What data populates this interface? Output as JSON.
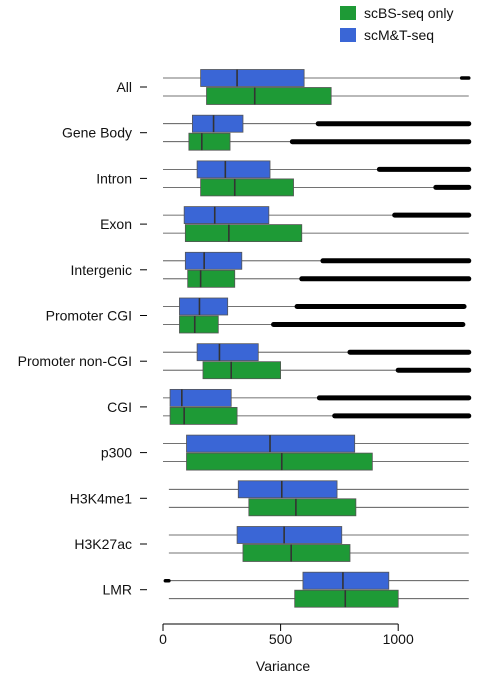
{
  "chart_data": {
    "type": "boxplot",
    "orientation": "horizontal",
    "xlabel": "Variance",
    "xlim": [
      -20,
      1320
    ],
    "xticks": [
      0,
      500,
      1000
    ],
    "grid": false,
    "legend_position": "top-right",
    "categories": [
      "All",
      "Gene Body",
      "Intron",
      "Exon",
      "Intergenic",
      "Promoter CGI",
      "Promoter non-CGI",
      "CGI",
      "p300",
      "H3K4me1",
      "H3K27ac",
      "LMR"
    ],
    "series": [
      {
        "name": "scM&T-seq",
        "color": "#3a66d6",
        "boxes": [
          {
            "min": 0,
            "q1": 160,
            "median": 315,
            "q3": 600,
            "max": 1270,
            "outliers_from": 1270,
            "outliers_to": 1300
          },
          {
            "min": 0,
            "q1": 125,
            "median": 215,
            "q3": 340,
            "max": 660,
            "outliers_from": 660,
            "outliers_to": 1300
          },
          {
            "min": 0,
            "q1": 145,
            "median": 265,
            "q3": 455,
            "max": 920,
            "outliers_from": 920,
            "outliers_to": 1300
          },
          {
            "min": 0,
            "q1": 90,
            "median": 220,
            "q3": 450,
            "max": 985,
            "outliers_from": 985,
            "outliers_to": 1300
          },
          {
            "min": 0,
            "q1": 95,
            "median": 175,
            "q3": 335,
            "max": 680,
            "outliers_from": 680,
            "outliers_to": 1300
          },
          {
            "min": 0,
            "q1": 70,
            "median": 155,
            "q3": 275,
            "max": 570,
            "outliers_from": 570,
            "outliers_to": 1280
          },
          {
            "min": 0,
            "q1": 145,
            "median": 240,
            "q3": 405,
            "max": 795,
            "outliers_from": 795,
            "outliers_to": 1300
          },
          {
            "min": 0,
            "q1": 30,
            "median": 80,
            "q3": 290,
            "max": 665,
            "outliers_from": 665,
            "outliers_to": 1300
          },
          {
            "min": 0,
            "q1": 100,
            "median": 455,
            "q3": 815,
            "max": 1300
          },
          {
            "min": 25,
            "q1": 320,
            "median": 505,
            "q3": 740,
            "max": 1300
          },
          {
            "min": 25,
            "q1": 315,
            "median": 515,
            "q3": 760,
            "max": 1300
          },
          {
            "min": 25,
            "q1": 595,
            "median": 765,
            "q3": 960,
            "max": 1300,
            "outliers_from": 10,
            "outliers_to": 25
          }
        ]
      },
      {
        "name": "scBS-seq only",
        "color": "#1e9a36",
        "boxes": [
          {
            "min": 0,
            "q1": 185,
            "median": 390,
            "q3": 715,
            "max": 1300
          },
          {
            "min": 0,
            "q1": 110,
            "median": 165,
            "q3": 285,
            "max": 550,
            "outliers_from": 550,
            "outliers_to": 1300
          },
          {
            "min": 0,
            "q1": 160,
            "median": 305,
            "q3": 555,
            "max": 1160,
            "outliers_from": 1160,
            "outliers_to": 1300
          },
          {
            "min": 0,
            "q1": 95,
            "median": 280,
            "q3": 590,
            "max": 1300
          },
          {
            "min": 0,
            "q1": 105,
            "median": 160,
            "q3": 305,
            "max": 590,
            "outliers_from": 590,
            "outliers_to": 1300
          },
          {
            "min": 0,
            "q1": 70,
            "median": 135,
            "q3": 235,
            "max": 470,
            "outliers_from": 470,
            "outliers_to": 1275
          },
          {
            "min": 0,
            "q1": 170,
            "median": 290,
            "q3": 500,
            "max": 1000,
            "outliers_from": 1000,
            "outliers_to": 1300
          },
          {
            "min": 0,
            "q1": 30,
            "median": 90,
            "q3": 315,
            "max": 730,
            "outliers_from": 730,
            "outliers_to": 1300
          },
          {
            "min": 0,
            "q1": 100,
            "median": 505,
            "q3": 890,
            "max": 1300
          },
          {
            "min": 25,
            "q1": 365,
            "median": 565,
            "q3": 820,
            "max": 1300
          },
          {
            "min": 25,
            "q1": 340,
            "median": 545,
            "q3": 795,
            "max": 1300
          },
          {
            "min": 25,
            "q1": 560,
            "median": 775,
            "q3": 1000,
            "max": 1300
          }
        ]
      }
    ],
    "legend_entries": [
      "scBS-seq only",
      "scM&T-seq"
    ]
  }
}
